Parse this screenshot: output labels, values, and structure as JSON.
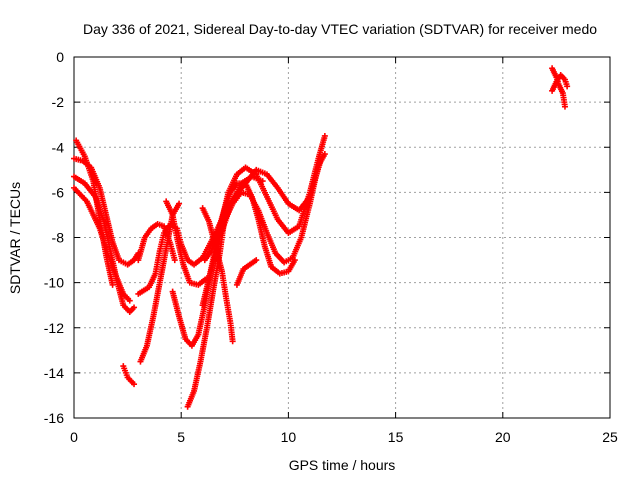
{
  "chart_data": {
    "type": "scatter",
    "title": "Day 336 of 2021, Sidereal Day-to-day VTEC variation (SDTVAR) for receiver medo",
    "xlabel": "GPS time / hours",
    "ylabel": "SDTVAR / TECUs",
    "xlim": [
      0,
      25
    ],
    "ylim": [
      -16,
      0
    ],
    "x_ticks": [
      0,
      5,
      10,
      15,
      20,
      25
    ],
    "y_ticks": [
      0,
      -2,
      -4,
      -6,
      -8,
      -10,
      -12,
      -14,
      -16
    ],
    "grid": true,
    "marker": "+",
    "color": "#ff0000",
    "tracks": [
      [
        [
          0.0,
          -4.5
        ],
        [
          0.4,
          -4.6
        ],
        [
          0.8,
          -4.9
        ],
        [
          1.2,
          -5.8
        ],
        [
          1.5,
          -7.0
        ],
        [
          1.8,
          -8.2
        ],
        [
          2.1,
          -9.0
        ],
        [
          2.5,
          -9.2
        ],
        [
          2.8,
          -9.0
        ],
        [
          3.0,
          -8.7
        ]
      ],
      [
        [
          0.1,
          -3.7
        ],
        [
          0.5,
          -4.4
        ],
        [
          0.9,
          -5.5
        ],
        [
          1.2,
          -7.2
        ],
        [
          1.5,
          -8.8
        ],
        [
          1.8,
          -10.1
        ]
      ],
      [
        [
          0.0,
          -5.3
        ],
        [
          0.5,
          -5.6
        ],
        [
          1.0,
          -6.2
        ],
        [
          1.4,
          -7.3
        ],
        [
          1.7,
          -8.6
        ],
        [
          2.0,
          -9.9
        ],
        [
          2.3,
          -11.0
        ],
        [
          2.6,
          -11.3
        ],
        [
          2.8,
          -11.1
        ]
      ],
      [
        [
          0.0,
          -5.8
        ],
        [
          0.6,
          -6.4
        ],
        [
          1.2,
          -7.6
        ],
        [
          1.6,
          -8.8
        ],
        [
          2.0,
          -9.8
        ],
        [
          2.3,
          -10.5
        ],
        [
          2.6,
          -10.8
        ]
      ],
      [
        [
          2.3,
          -13.7
        ],
        [
          2.5,
          -14.2
        ],
        [
          2.8,
          -14.5
        ]
      ],
      [
        [
          3.0,
          -10.5
        ],
        [
          3.5,
          -10.2
        ],
        [
          3.8,
          -9.6
        ],
        [
          4.0,
          -8.6
        ],
        [
          4.2,
          -7.8
        ],
        [
          4.5,
          -7.4
        ],
        [
          4.8,
          -7.6
        ],
        [
          5.0,
          -8.3
        ],
        [
          5.3,
          -9.0
        ],
        [
          5.6,
          -9.2
        ],
        [
          6.0,
          -8.9
        ],
        [
          6.5,
          -8.0
        ],
        [
          7.0,
          -7.0
        ],
        [
          7.5,
          -6.2
        ],
        [
          8.0,
          -5.6
        ],
        [
          8.5,
          -5.0
        ],
        [
          9.0,
          -5.2
        ],
        [
          9.5,
          -5.8
        ],
        [
          10.0,
          -6.5
        ],
        [
          10.5,
          -6.8
        ],
        [
          11.0,
          -6.2
        ],
        [
          11.5,
          -4.6
        ]
      ],
      [
        [
          3.0,
          -9.0
        ],
        [
          3.3,
          -8.0
        ],
        [
          3.6,
          -7.6
        ],
        [
          3.9,
          -7.4
        ],
        [
          4.2,
          -7.5
        ],
        [
          4.5,
          -8.3
        ],
        [
          4.7,
          -9.0
        ]
      ],
      [
        [
          3.1,
          -13.5
        ],
        [
          3.4,
          -12.8
        ],
        [
          3.7,
          -11.5
        ],
        [
          4.0,
          -10.0
        ],
        [
          4.3,
          -8.5
        ],
        [
          4.6,
          -7.0
        ],
        [
          4.9,
          -6.5
        ]
      ],
      [
        [
          4.3,
          -6.4
        ],
        [
          4.6,
          -7.0
        ],
        [
          4.8,
          -8.0
        ],
        [
          5.1,
          -9.2
        ],
        [
          5.4,
          -10.0
        ],
        [
          5.8,
          -10.1
        ],
        [
          6.2,
          -9.8
        ]
      ],
      [
        [
          4.6,
          -10.4
        ],
        [
          4.9,
          -11.5
        ],
        [
          5.2,
          -12.5
        ],
        [
          5.5,
          -12.8
        ],
        [
          5.8,
          -12.3
        ],
        [
          6.1,
          -11.0
        ],
        [
          6.4,
          -9.5
        ],
        [
          6.8,
          -8.0
        ],
        [
          7.3,
          -6.6
        ],
        [
          7.8,
          -5.6
        ],
        [
          8.3,
          -5.3
        ],
        [
          8.8,
          -5.5
        ]
      ],
      [
        [
          5.3,
          -15.5
        ],
        [
          5.6,
          -14.8
        ],
        [
          5.9,
          -13.5
        ],
        [
          6.2,
          -12.0
        ],
        [
          6.5,
          -10.3
        ],
        [
          6.8,
          -8.7
        ],
        [
          7.0,
          -7.3
        ],
        [
          7.4,
          -6.5
        ],
        [
          7.8,
          -6.0
        ],
        [
          8.2,
          -6.1
        ],
        [
          8.6,
          -6.8
        ],
        [
          9.0,
          -7.8
        ],
        [
          9.4,
          -8.7
        ],
        [
          9.8,
          -9.1
        ],
        [
          10.2,
          -8.9
        ],
        [
          10.6,
          -8.0
        ],
        [
          11.0,
          -6.5
        ],
        [
          11.4,
          -4.8
        ],
        [
          11.7,
          -4.3
        ]
      ],
      [
        [
          6.0,
          -6.7
        ],
        [
          6.3,
          -7.3
        ],
        [
          6.6,
          -8.4
        ],
        [
          6.9,
          -9.5
        ],
        [
          7.1,
          -10.7
        ],
        [
          7.3,
          -11.8
        ],
        [
          7.4,
          -12.6
        ]
      ],
      [
        [
          6.0,
          -11.0
        ],
        [
          6.3,
          -9.8
        ],
        [
          6.6,
          -8.5
        ],
        [
          6.9,
          -7.2
        ],
        [
          7.2,
          -6.0
        ],
        [
          7.6,
          -5.2
        ],
        [
          8.0,
          -4.9
        ],
        [
          8.5,
          -5.2
        ],
        [
          9.0,
          -6.2
        ],
        [
          9.5,
          -7.2
        ],
        [
          10.0,
          -7.8
        ],
        [
          10.5,
          -7.5
        ],
        [
          11.0,
          -6.0
        ],
        [
          11.4,
          -4.5
        ],
        [
          11.7,
          -3.5
        ]
      ],
      [
        [
          6.1,
          -9.0
        ],
        [
          6.4,
          -8.6
        ],
        [
          6.7,
          -7.8
        ],
        [
          7.0,
          -6.8
        ],
        [
          7.3,
          -6.0
        ],
        [
          7.6,
          -5.6
        ],
        [
          8.0,
          -5.6
        ],
        [
          8.3,
          -6.2
        ],
        [
          8.6,
          -7.2
        ],
        [
          8.9,
          -8.4
        ],
        [
          9.2,
          -9.3
        ],
        [
          9.6,
          -9.6
        ],
        [
          10.0,
          -9.5
        ],
        [
          10.3,
          -9.0
        ]
      ],
      [
        [
          7.6,
          -10.1
        ],
        [
          7.9,
          -9.4
        ],
        [
          8.2,
          -9.2
        ],
        [
          8.5,
          -9.0
        ]
      ],
      [
        [
          22.3,
          -0.5
        ],
        [
          22.5,
          -0.9
        ],
        [
          22.6,
          -1.2
        ],
        [
          22.8,
          -1.6
        ],
        [
          22.9,
          -2.2
        ]
      ],
      [
        [
          22.3,
          -1.5
        ],
        [
          22.5,
          -1.1
        ],
        [
          22.7,
          -0.8
        ],
        [
          22.9,
          -1.0
        ],
        [
          23.0,
          -1.3
        ]
      ]
    ]
  }
}
